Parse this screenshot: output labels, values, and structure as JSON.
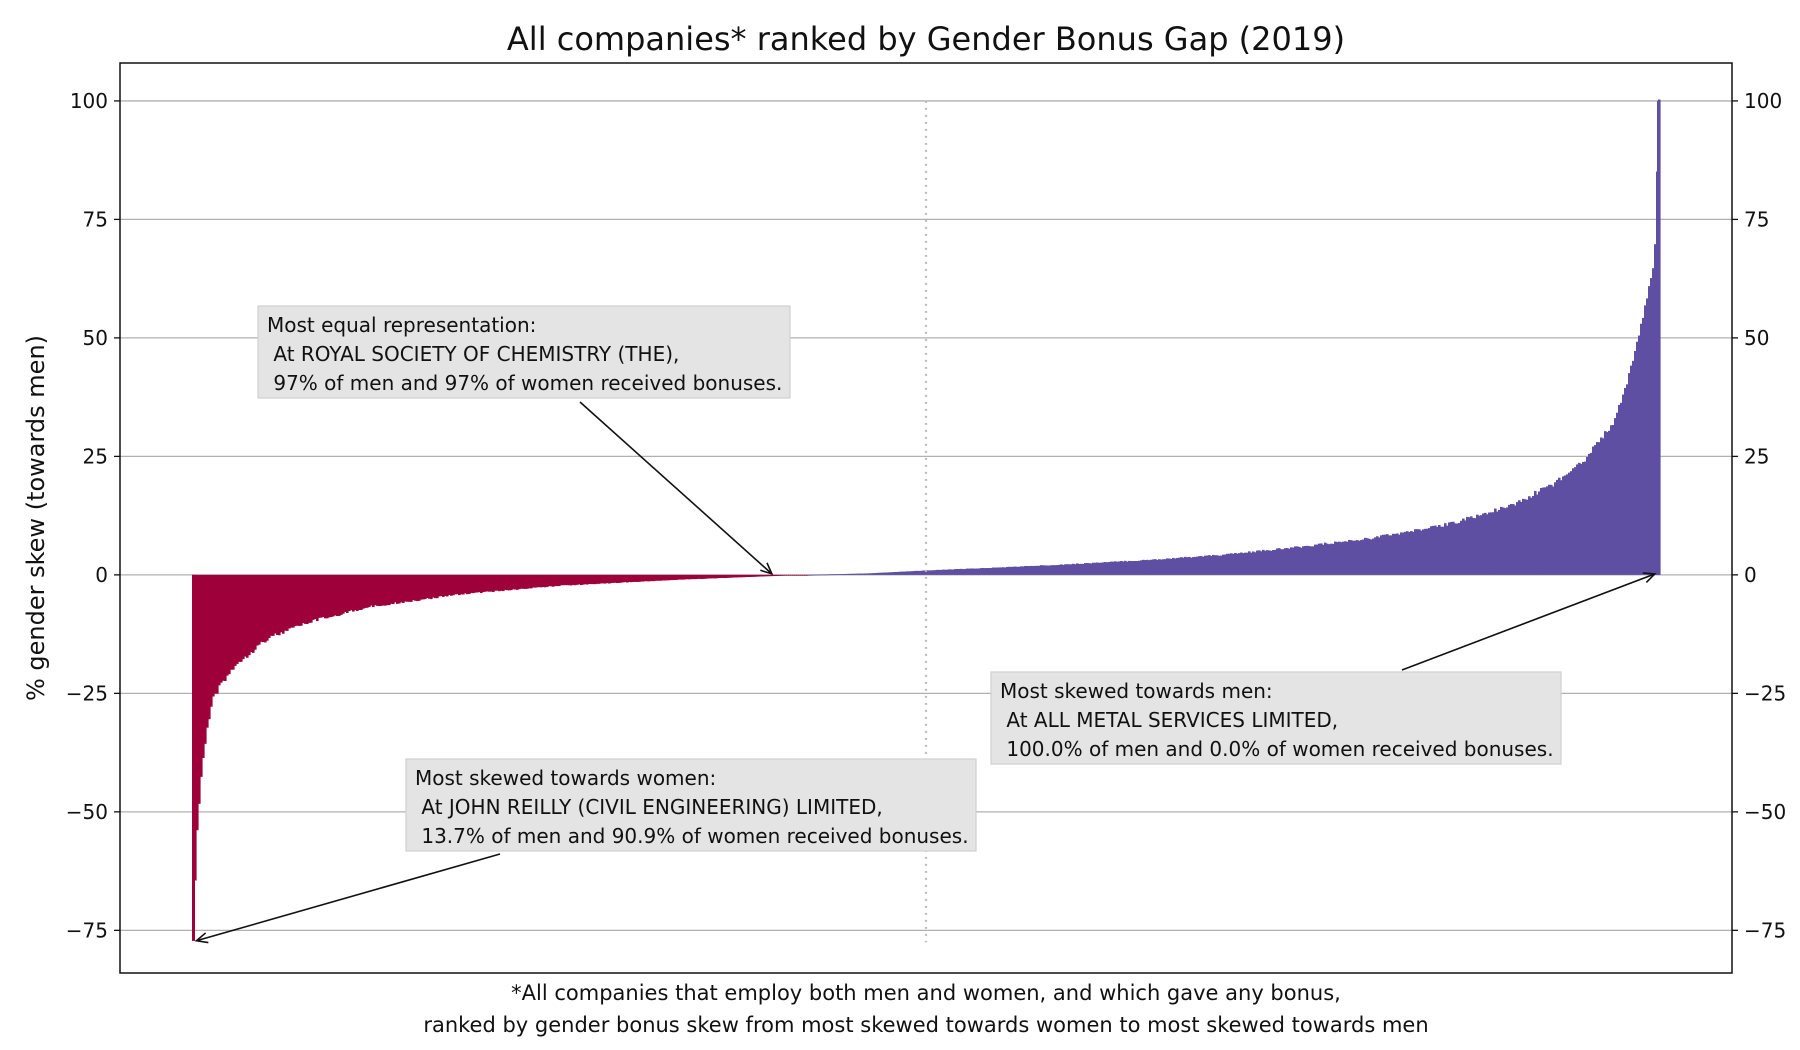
{
  "chart_data": {
    "type": "bar",
    "title": "All companies* ranked by Gender Bonus Gap (2019)",
    "ylabel": "% gender skew (towards men)",
    "xlabel": "",
    "ylim": [
      -84,
      108
    ],
    "yticks": [
      100,
      75,
      50,
      25,
      0,
      -25,
      -50,
      -75
    ],
    "ytick_labels": [
      "100",
      "75",
      "50",
      "25",
      "0",
      "−25",
      "−50",
      "−75"
    ],
    "grid": "horizontal",
    "n_companies": 2400,
    "rank_median_marker": 1200,
    "ranked_profile": [
      {
        "rank_fraction": 0.0,
        "value": -77.2
      },
      {
        "rank_fraction": 0.0015,
        "value": -62.0
      },
      {
        "rank_fraction": 0.003,
        "value": -52.0
      },
      {
        "rank_fraction": 0.006,
        "value": -40.0
      },
      {
        "rank_fraction": 0.009,
        "value": -33.0
      },
      {
        "rank_fraction": 0.013,
        "value": -26.0
      },
      {
        "rank_fraction": 0.02,
        "value": -22.0
      },
      {
        "rank_fraction": 0.03,
        "value": -18.0
      },
      {
        "rank_fraction": 0.05,
        "value": -13.0
      },
      {
        "rank_fraction": 0.08,
        "value": -9.5
      },
      {
        "rank_fraction": 0.12,
        "value": -6.5
      },
      {
        "rank_fraction": 0.18,
        "value": -4.0
      },
      {
        "rank_fraction": 0.25,
        "value": -2.2
      },
      {
        "rank_fraction": 0.33,
        "value": -1.0
      },
      {
        "rank_fraction": 0.39,
        "value": -0.3
      },
      {
        "rank_fraction": 0.42,
        "value": 0.0
      },
      {
        "rank_fraction": 0.46,
        "value": 0.3
      },
      {
        "rank_fraction": 0.5,
        "value": 0.9
      },
      {
        "rank_fraction": 0.55,
        "value": 1.5
      },
      {
        "rank_fraction": 0.6,
        "value": 2.2
      },
      {
        "rank_fraction": 0.65,
        "value": 3.0
      },
      {
        "rank_fraction": 0.7,
        "value": 4.0
      },
      {
        "rank_fraction": 0.75,
        "value": 5.5
      },
      {
        "rank_fraction": 0.8,
        "value": 7.3
      },
      {
        "rank_fraction": 0.85,
        "value": 9.8
      },
      {
        "rank_fraction": 0.9,
        "value": 14.0
      },
      {
        "rank_fraction": 0.93,
        "value": 19.0
      },
      {
        "rank_fraction": 0.95,
        "value": 24.0
      },
      {
        "rank_fraction": 0.97,
        "value": 32.0
      },
      {
        "rank_fraction": 0.98,
        "value": 42.0
      },
      {
        "rank_fraction": 0.99,
        "value": 55.0
      },
      {
        "rank_fraction": 0.997,
        "value": 66.0
      },
      {
        "rank_fraction": 1.0,
        "value": 100.0
      }
    ],
    "colors": {
      "women_skew": "#9e003a",
      "men_skew": "#5e4fa2",
      "median_marker": "#bbbbbb"
    },
    "annotations": [
      {
        "id": "equal",
        "lines": [
          "Most equal representation:",
          " At ROYAL SOCIETY OF CHEMISTRY (THE),",
          " 97% of men and 97% of women received bonuses."
        ],
        "target_rank_fraction": 0.395,
        "target_value": 0
      },
      {
        "id": "men",
        "lines": [
          "Most skewed towards men:",
          " At ALL METAL SERVICES LIMITED,",
          " 100.0% of men and 0.0% of women received bonuses."
        ],
        "target_rank_fraction": 0.9965,
        "target_value": 0
      },
      {
        "id": "women",
        "lines": [
          "Most skewed towards women:",
          " At JOHN REILLY (CIVIL ENGINEERING) LIMITED,",
          " 13.7% of men and 90.9% of women received bonuses."
        ],
        "target_rank_fraction": 0.003,
        "target_value": -77.2
      }
    ],
    "footnote": [
      "*All companies that employ both men and women, and which gave any bonus,",
      "ranked by gender bonus skew from most skewed towards women to most skewed towards men"
    ]
  }
}
